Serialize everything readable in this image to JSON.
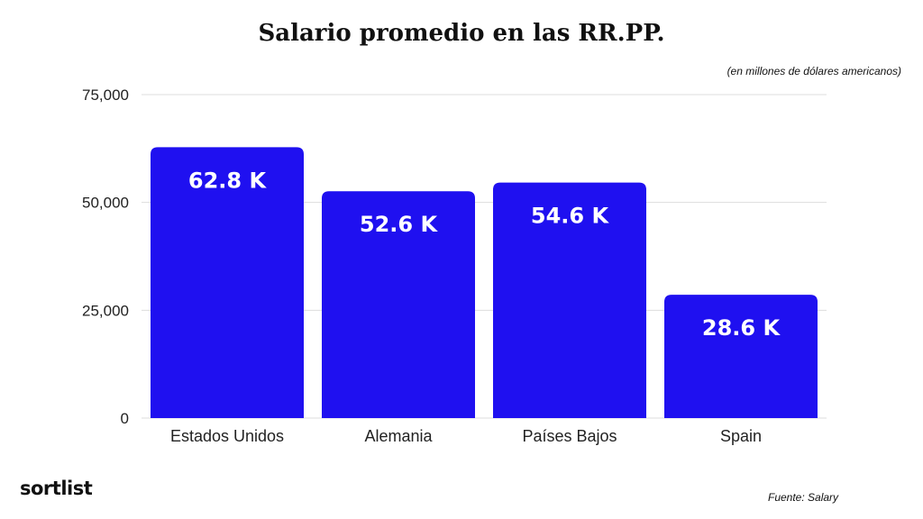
{
  "chart_data": {
    "type": "bar",
    "title": "Salario promedio en las RR.PP.",
    "subtitle": "(en millones de dólares americanos)",
    "categories": [
      "Estados Unidos",
      "Alemania",
      "Países Bajos",
      "Spain"
    ],
    "values": [
      62800,
      52600,
      54600,
      28600
    ],
    "data_labels": [
      "62.8 K",
      "52.6 K",
      "54.6 K",
      "28.6 K"
    ],
    "yticks": [
      0,
      25000,
      50000,
      75000
    ],
    "ytick_labels": [
      "0",
      "25,000",
      "50,000",
      "75,000"
    ],
    "ylim": [
      0,
      75000
    ],
    "grid": true,
    "bar_color": "#1f10f0",
    "grid_color": "#dddddd"
  },
  "branding": {
    "logo_text": "sortlist"
  },
  "source": "Fuente: Salary"
}
